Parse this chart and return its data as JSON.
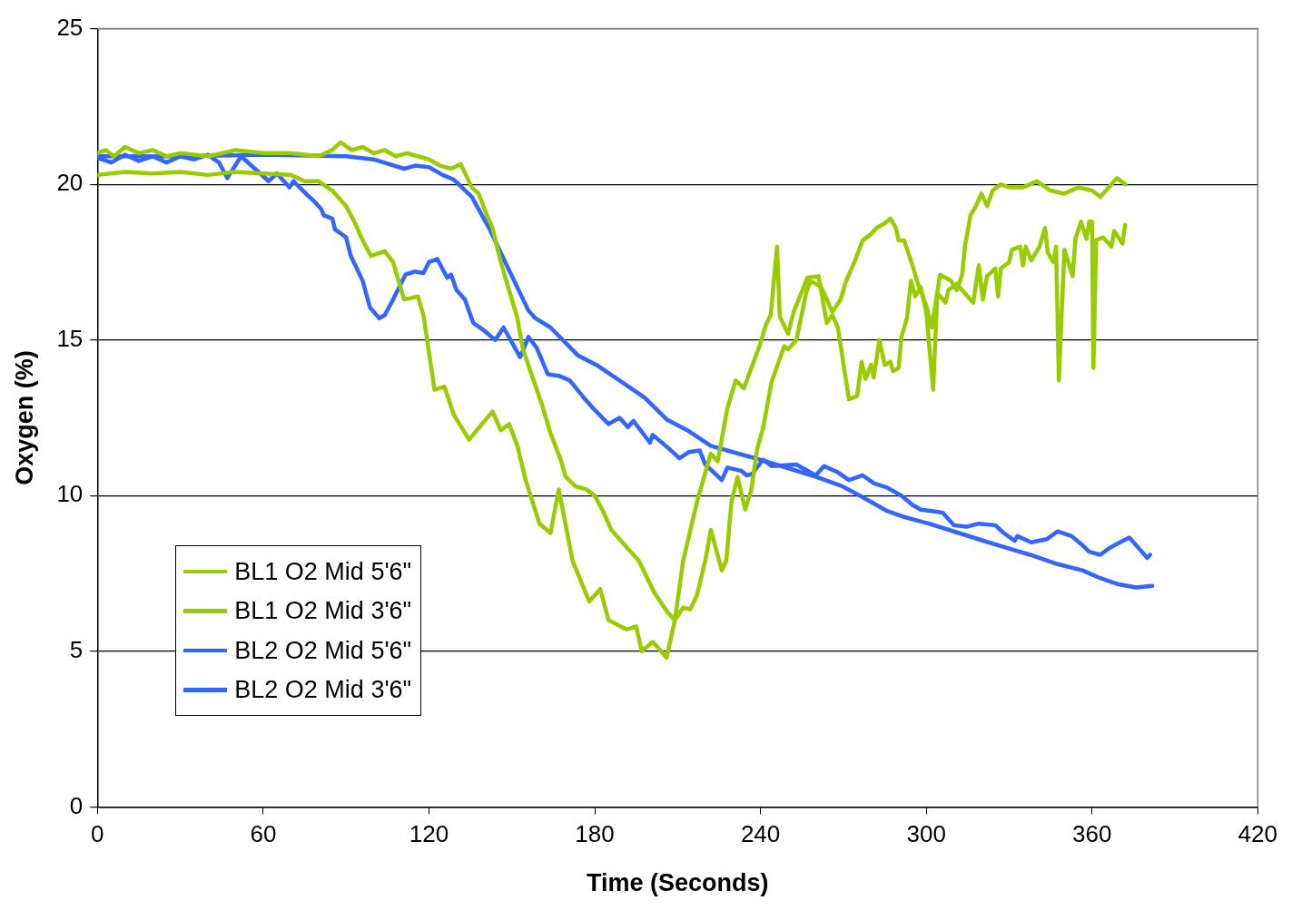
{
  "chart_data": {
    "type": "line",
    "xlabel": "Time (Seconds)",
    "ylabel": "Oxygen (%)",
    "xlim": [
      0,
      420
    ],
    "xticks": [
      0,
      60,
      120,
      180,
      240,
      300,
      360,
      420
    ],
    "ylim": [
      0,
      25
    ],
    "yticks": [
      0,
      5,
      10,
      15,
      20,
      25
    ],
    "grid": "y",
    "legend": "bottom left",
    "marker": "none",
    "line_style": "solid",
    "series": [
      {
        "name": "BL1 O2 Mid 5'6\"",
        "color": "#99cc00",
        "x": [
          0,
          10,
          20,
          30,
          40,
          50,
          60,
          70,
          75,
          80,
          85,
          90,
          93,
          96,
          99,
          104,
          107,
          111,
          116,
          118,
          122,
          125.6,
          129,
          134.5,
          143,
          146,
          149,
          152,
          155,
          160,
          164,
          167,
          172,
          178,
          182,
          185,
          191.5,
          195,
          197,
          201,
          206,
          209,
          212,
          217,
          222,
          224.5,
          228,
          231,
          234,
          240,
          242,
          243.7,
          246,
          247,
          250,
          252,
          257,
          261,
          264,
          266,
          268,
          272,
          275,
          276.6,
          278,
          280,
          281,
          283,
          285,
          287,
          288,
          290,
          291,
          293,
          294.5,
          296,
          298,
          300,
          302.5,
          304,
          307,
          308,
          311,
          315,
          317,
          319,
          320.5,
          322,
          325,
          326,
          327,
          330,
          331,
          334,
          335,
          336,
          338,
          341,
          343,
          344,
          346,
          347,
          348,
          350,
          353,
          354,
          356,
          358,
          359,
          360,
          360.5,
          361.5,
          364,
          367,
          368,
          371,
          372
        ],
        "values": [
          20.3,
          20.4,
          20.35,
          20.4,
          20.3,
          20.4,
          20.35,
          20.3,
          20.1,
          20.1,
          19.8,
          19.3,
          18.8,
          18.2,
          17.7,
          17.85,
          17.5,
          16.3,
          16.4,
          15.8,
          13.4,
          13.5,
          12.6,
          11.8,
          12.7,
          12.1,
          12.3,
          11.6,
          10.5,
          9.1,
          8.8,
          10.2,
          7.9,
          6.6,
          7.0,
          6.0,
          5.7,
          5.8,
          5.0,
          5.3,
          4.8,
          6.0,
          7.9,
          9.8,
          11.35,
          11.1,
          12.8,
          13.7,
          13.45,
          14.9,
          15.5,
          15.8,
          18.0,
          15.75,
          15.2,
          15.9,
          17.0,
          17.05,
          15.55,
          15.8,
          15.4,
          13.1,
          13.2,
          14.3,
          13.75,
          14.2,
          13.8,
          15.0,
          14.2,
          14.3,
          14.0,
          14.1,
          15.1,
          15.7,
          16.9,
          16.4,
          16.7,
          15.9,
          13.4,
          16.5,
          16.2,
          16.6,
          16.8,
          16.4,
          16.2,
          17.4,
          16.3,
          17.05,
          17.3,
          16.4,
          17.3,
          17.5,
          17.9,
          18.0,
          17.4,
          18.0,
          17.55,
          18.0,
          18.6,
          17.8,
          17.5,
          18.0,
          13.7,
          17.9,
          17.05,
          18.25,
          18.8,
          18.25,
          18.8,
          18.8,
          14.1,
          18.2,
          18.3,
          18.0,
          18.5,
          18.1,
          18.7
        ]
      },
      {
        "name": "BL1 O2 Mid 3'6\"",
        "color": "#99cc00",
        "x": [
          0,
          3,
          6,
          10,
          15,
          20,
          25,
          30,
          40,
          50,
          60,
          70,
          80,
          85,
          88,
          92,
          96,
          100,
          104,
          108,
          112,
          116,
          120,
          124,
          128,
          131.5,
          135.5,
          138,
          141,
          143,
          146,
          149,
          152,
          154,
          157.5,
          161,
          164,
          167.5,
          169.5,
          173,
          177,
          180,
          183,
          186,
          191.5,
          196,
          201.5,
          206,
          209,
          212,
          214.6,
          217,
          220,
          222,
          226,
          227.6,
          229.5,
          231.7,
          234.5,
          236.7,
          238.8,
          241,
          244,
          248.6,
          250,
          253,
          256.5,
          258,
          262,
          266,
          269,
          271,
          274,
          277,
          280,
          282,
          285,
          287,
          289,
          290,
          292,
          295,
          297,
          300,
          302,
          305,
          309,
          311,
          313,
          314,
          316,
          318,
          320,
          322,
          324,
          327,
          330,
          335,
          340,
          345,
          350,
          355,
          360,
          363,
          367,
          369,
          372
        ],
        "values": [
          21.0,
          21.1,
          20.9,
          21.2,
          21.0,
          21.1,
          20.9,
          21.0,
          20.9,
          21.1,
          21.0,
          21.0,
          20.9,
          21.1,
          21.35,
          21.1,
          21.2,
          21.0,
          21.1,
          20.9,
          21.0,
          20.9,
          20.8,
          20.6,
          20.5,
          20.65,
          19.9,
          19.7,
          19.0,
          18.6,
          17.5,
          16.6,
          15.7,
          14.7,
          13.8,
          12.9,
          12.0,
          11.2,
          10.6,
          10.3,
          10.2,
          10.0,
          9.5,
          8.9,
          8.35,
          7.9,
          6.9,
          6.3,
          6.0,
          6.4,
          6.35,
          6.8,
          7.9,
          8.9,
          7.6,
          7.9,
          9.8,
          10.6,
          9.55,
          10.2,
          11.5,
          12.2,
          13.65,
          14.8,
          14.7,
          15.0,
          16.5,
          16.9,
          16.7,
          15.9,
          16.3,
          16.9,
          17.5,
          18.2,
          18.4,
          18.6,
          18.75,
          18.9,
          18.6,
          18.2,
          18.2,
          17.4,
          16.8,
          16.1,
          15.4,
          17.1,
          16.9,
          16.6,
          17.1,
          18.0,
          19.0,
          19.3,
          19.7,
          19.3,
          19.8,
          20.0,
          19.9,
          19.9,
          20.1,
          19.8,
          19.7,
          19.9,
          19.8,
          19.6,
          20.0,
          20.2,
          20.0
        ]
      },
      {
        "name": "BL2 O2 Mid 5'6\"",
        "color": "#3366ff",
        "x": [
          0,
          5,
          10,
          15,
          20,
          25,
          30,
          35,
          40,
          44,
          47,
          52,
          57,
          62,
          65,
          69.5,
          71,
          76,
          78.5,
          81,
          82,
          85,
          86,
          90,
          91.7,
          96,
          98.6,
          102,
          104,
          107,
          111.5,
          115,
          118,
          120,
          123,
          126.6,
          128,
          130,
          133,
          136,
          140,
          144,
          147,
          153,
          156,
          159,
          163,
          167,
          171,
          176,
          179.5,
          185,
          189,
          192,
          194,
          200,
          201,
          207,
          210.7,
          214,
          218,
          220,
          226,
          228,
          233,
          235,
          237,
          240,
          241,
          244,
          253,
          260,
          263,
          268,
          272,
          277,
          281,
          286,
          291,
          295,
          298,
          302.6,
          306,
          310,
          314.5,
          319,
          325,
          328,
          332,
          333,
          338,
          343.6,
          347.5,
          352.6,
          356,
          359,
          363,
          366,
          369,
          373.5,
          377,
          380,
          381
        ],
        "values": [
          20.85,
          20.7,
          20.95,
          20.75,
          20.9,
          20.7,
          20.9,
          20.8,
          20.95,
          20.7,
          20.2,
          20.9,
          20.5,
          20.1,
          20.35,
          19.9,
          20.1,
          19.65,
          19.45,
          19.2,
          19.0,
          18.9,
          18.55,
          18.3,
          17.7,
          16.9,
          16.05,
          15.7,
          15.8,
          16.3,
          17.1,
          17.2,
          17.15,
          17.5,
          17.6,
          17.0,
          17.1,
          16.6,
          16.3,
          15.55,
          15.3,
          15.0,
          15.4,
          14.45,
          15.1,
          14.75,
          13.9,
          13.85,
          13.7,
          13.15,
          12.8,
          12.3,
          12.5,
          12.2,
          12.4,
          11.7,
          11.95,
          11.5,
          11.2,
          11.4,
          11.45,
          11.0,
          10.5,
          10.9,
          10.8,
          10.65,
          10.7,
          11.05,
          11.15,
          10.95,
          11.0,
          10.65,
          10.95,
          10.75,
          10.5,
          10.65,
          10.4,
          10.25,
          10.0,
          9.7,
          9.55,
          9.5,
          9.45,
          9.05,
          9.0,
          9.1,
          9.05,
          8.8,
          8.55,
          8.7,
          8.5,
          8.6,
          8.85,
          8.7,
          8.45,
          8.2,
          8.1,
          8.3,
          8.45,
          8.65,
          8.3,
          8.0,
          8.1
        ]
      },
      {
        "name": "BL2 O2 Mid 3'6\"",
        "color": "#3366ff",
        "x": [
          0,
          30,
          60,
          90,
          100,
          111,
          115,
          120,
          125,
          129,
          135.5,
          142,
          147.6,
          156,
          158.5,
          164,
          174,
          180.6,
          189,
          198,
          206,
          213.5,
          222,
          230,
          242,
          258.5,
          269.6,
          277,
          286,
          292.5,
          301,
          310,
          322.5,
          330,
          337.6,
          347.5,
          356.5,
          363,
          369.6,
          376,
          381.8
        ],
        "values": [
          20.9,
          20.9,
          20.95,
          20.9,
          20.8,
          20.5,
          20.6,
          20.55,
          20.3,
          20.15,
          19.6,
          18.55,
          17.5,
          15.95,
          15.7,
          15.4,
          14.5,
          14.2,
          13.7,
          13.15,
          12.45,
          12.1,
          11.6,
          11.4,
          11.1,
          10.65,
          10.3,
          9.95,
          9.5,
          9.3,
          9.1,
          8.85,
          8.5,
          8.3,
          8.1,
          7.8,
          7.6,
          7.35,
          7.15,
          7.05,
          7.1
        ]
      }
    ]
  }
}
